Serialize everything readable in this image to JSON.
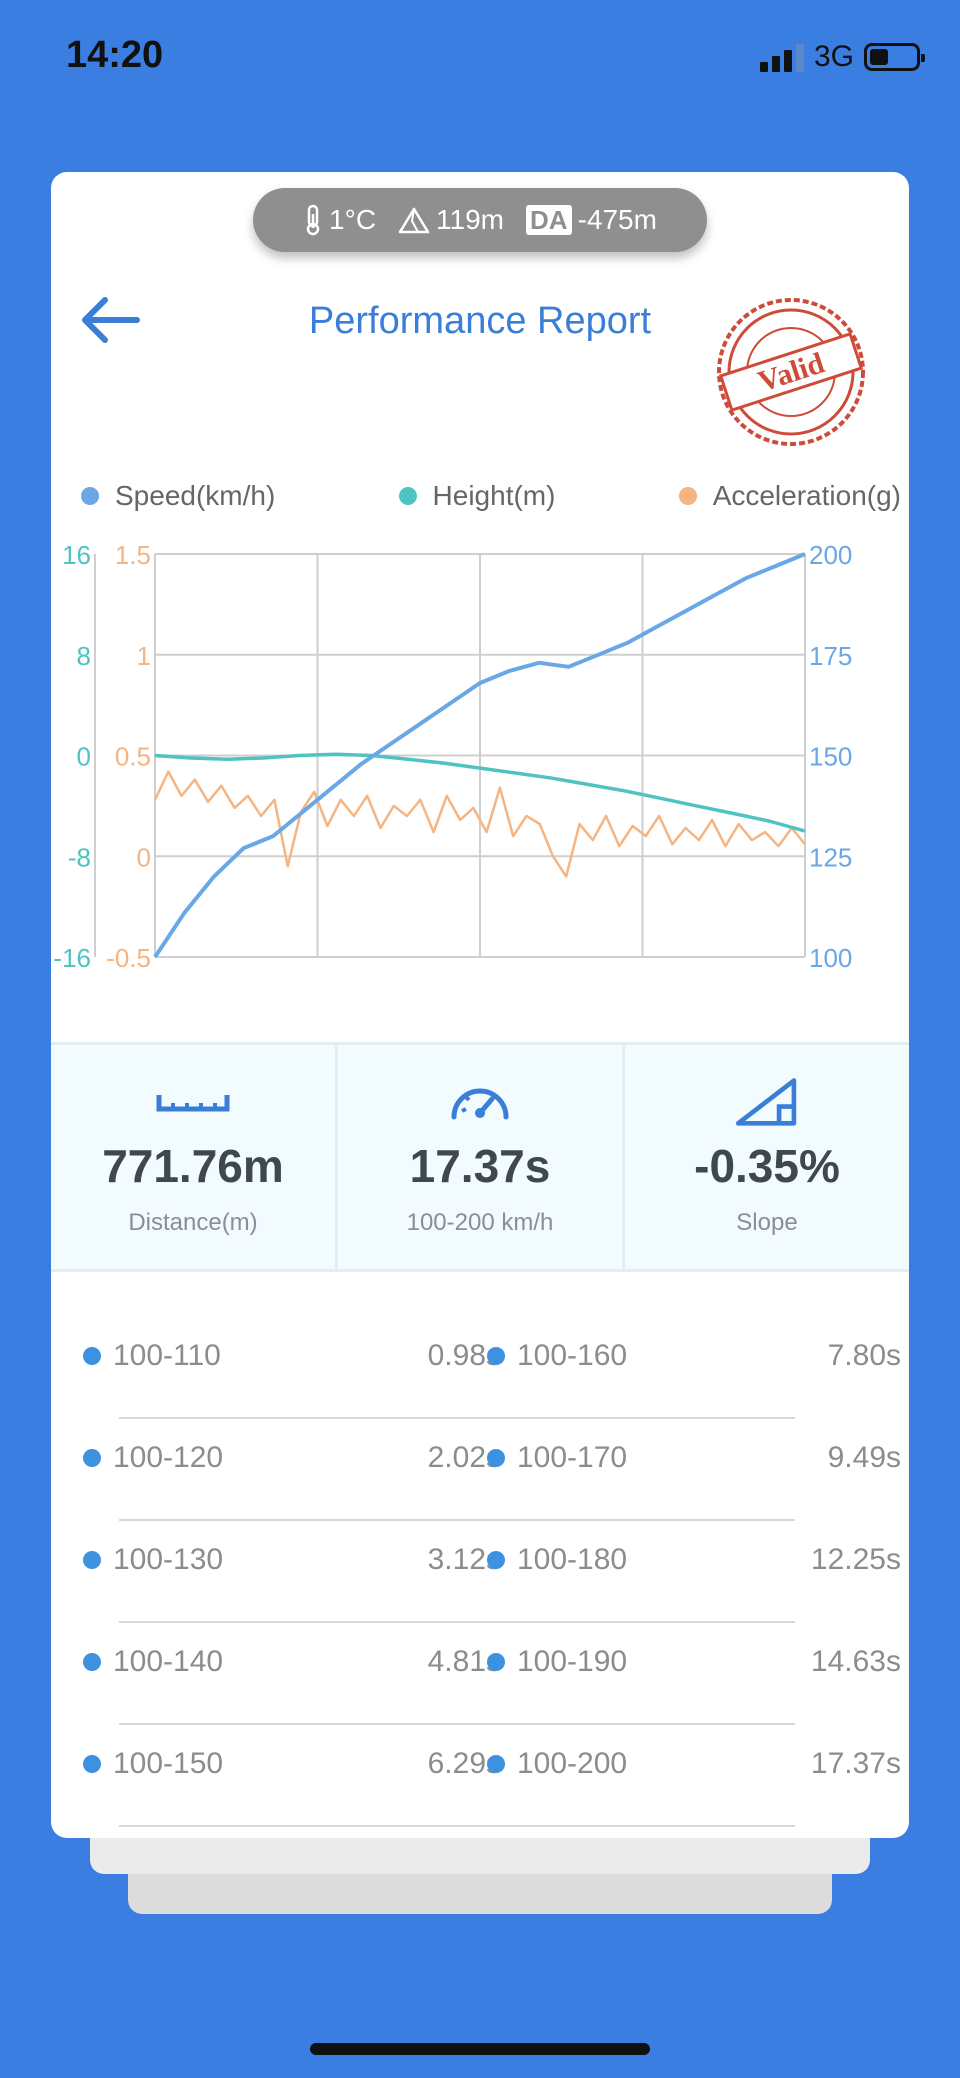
{
  "status": {
    "time": "14:20",
    "network": "3G"
  },
  "env": {
    "temperature": "1°C",
    "altitude": "119m",
    "da_label": "DA",
    "density_altitude": "-475m"
  },
  "header": {
    "title": "Performance Report",
    "stamp_text": "Valid"
  },
  "colors": {
    "background": "#3a7ee2",
    "speed": "#6aa7e6",
    "height": "#4fc3c2",
    "acceleration": "#f4b583",
    "accent": "#3a7ed8"
  },
  "chart_data": {
    "type": "line",
    "legend": [
      "Speed(km/h)",
      "Height(m)",
      "Acceleration(g)"
    ],
    "legend_placement": "top",
    "grid": true,
    "axes": {
      "height": {
        "ticks": [
          "16",
          "8",
          "0",
          "-8",
          "-16"
        ],
        "range": [
          -16,
          16
        ]
      },
      "acceleration": {
        "ticks": [
          "1.5",
          "1",
          "0.5",
          "0",
          "-0.5"
        ],
        "range": [
          -0.5,
          1.5
        ]
      },
      "speed": {
        "ticks": [
          "200",
          "175",
          "150",
          "125",
          "100"
        ],
        "range": [
          100,
          200
        ]
      }
    },
    "series": [
      {
        "name": "Speed(km/h)",
        "axis": "speed",
        "values": [
          100,
          111,
          120,
          127,
          130,
          136,
          142,
          148,
          153,
          158,
          163,
          168,
          171,
          173,
          172,
          175,
          178,
          182,
          186,
          190,
          194,
          197,
          200
        ]
      },
      {
        "name": "Height(m)",
        "axis": "height",
        "values": [
          0,
          -0.2,
          -0.3,
          -0.2,
          0,
          0.1,
          0,
          -0.3,
          -0.6,
          -1,
          -1.4,
          -1.8,
          -2.3,
          -2.8,
          -3.4,
          -4,
          -4.6,
          -5.2,
          -6
        ]
      },
      {
        "name": "Acceleration(g)",
        "axis": "acceleration",
        "values": [
          0.28,
          0.42,
          0.3,
          0.38,
          0.27,
          0.35,
          0.24,
          0.3,
          0.2,
          0.28,
          -0.05,
          0.22,
          0.32,
          0.15,
          0.28,
          0.2,
          0.3,
          0.14,
          0.25,
          0.2,
          0.28,
          0.12,
          0.3,
          0.18,
          0.24,
          0.12,
          0.34,
          0.1,
          0.2,
          0.16,
          0.0,
          -0.1,
          0.16,
          0.08,
          0.2,
          0.05,
          0.15,
          0.1,
          0.2,
          0.06,
          0.14,
          0.08,
          0.18,
          0.05,
          0.16,
          0.08,
          0.12,
          0.05,
          0.14,
          0.06
        ]
      }
    ]
  },
  "stats": [
    {
      "value": "771.76m",
      "label": "Distance(m)",
      "icon": "ruler-icon"
    },
    {
      "value": "17.37s",
      "label": "100-200 km/h",
      "icon": "speedometer-icon"
    },
    {
      "value": "-0.35%",
      "label": "Slope",
      "icon": "slope-icon"
    }
  ],
  "splits": [
    {
      "left": {
        "range": "100-110",
        "time": "0.98s"
      },
      "right": {
        "range": "100-160",
        "time": "7.80s"
      }
    },
    {
      "left": {
        "range": "100-120",
        "time": "2.02s"
      },
      "right": {
        "range": "100-170",
        "time": "9.49s"
      }
    },
    {
      "left": {
        "range": "100-130",
        "time": "3.12s"
      },
      "right": {
        "range": "100-180",
        "time": "12.25s"
      }
    },
    {
      "left": {
        "range": "100-140",
        "time": "4.81s"
      },
      "right": {
        "range": "100-190",
        "time": "14.63s"
      }
    },
    {
      "left": {
        "range": "100-150",
        "time": "6.29s"
      },
      "right": {
        "range": "100-200",
        "time": "17.37s"
      }
    }
  ]
}
